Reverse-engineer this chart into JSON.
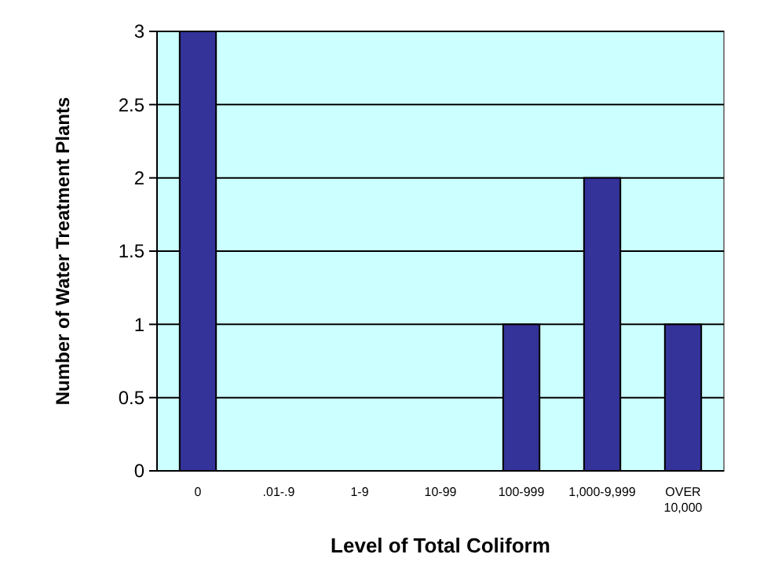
{
  "chart_data": {
    "type": "bar",
    "xlabel": "Level of Total Coliform",
    "ylabel": "Number of Water Treatment Plants",
    "categories": [
      "0",
      ".01-.9",
      "1-9",
      "10-99",
      "100-999",
      "1,000-9,999",
      "OVER 10,000"
    ],
    "values": [
      3,
      0,
      0,
      0,
      1,
      2,
      1
    ],
    "color": "#333399",
    "ylim": [
      0,
      3
    ],
    "yticks": [
      0,
      0.5,
      1,
      1.5,
      2,
      2.5,
      3
    ],
    "grid": "y"
  }
}
